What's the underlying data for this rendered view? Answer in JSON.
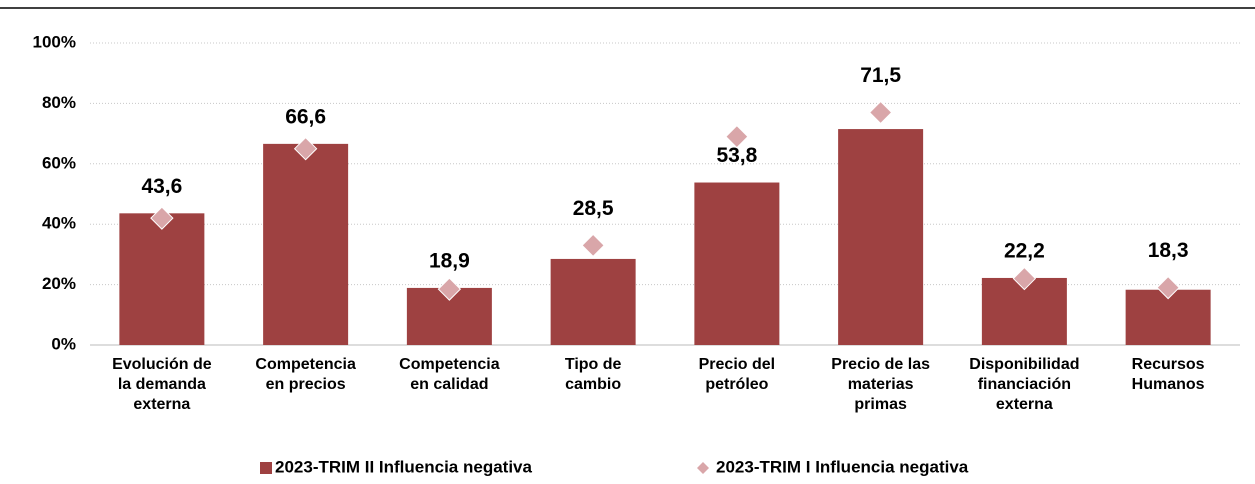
{
  "chart_data": {
    "type": "bar",
    "categories": [
      [
        "Evolución de",
        "la demanda",
        "externa"
      ],
      [
        "Competencia",
        "en precios"
      ],
      [
        "Competencia",
        "en calidad"
      ],
      [
        "Tipo de",
        "cambio"
      ],
      [
        "Precio del",
        "petróleo"
      ],
      [
        "Precio de las",
        "materias",
        "primas"
      ],
      [
        "Disponibilidad",
        "financiación",
        "externa"
      ],
      [
        "Recursos",
        "Humanos"
      ]
    ],
    "series": [
      {
        "name": "2023-TRIM II Influencia negativa",
        "color": "#9e4141",
        "marker": "bar",
        "values": [
          43.6,
          66.6,
          18.9,
          28.5,
          53.8,
          71.5,
          22.2,
          18.3
        ],
        "value_labels": [
          "43,6",
          "66,6",
          "18,9",
          "28,5",
          "53,8",
          "71,5",
          "22,2",
          "18,3"
        ]
      },
      {
        "name": "2023-TRIM I Influencia negativa",
        "color": "#d9a6a9",
        "marker": "diamond",
        "values": [
          42,
          65,
          18.5,
          33,
          69,
          77,
          22,
          19
        ]
      }
    ],
    "ylim": [
      0,
      100
    ],
    "yticks": [
      {
        "value": 0,
        "label": "0%"
      },
      {
        "value": 20,
        "label": "20%"
      },
      {
        "value": 40,
        "label": "40%"
      },
      {
        "value": 60,
        "label": "60%"
      },
      {
        "value": 80,
        "label": "80%"
      },
      {
        "value": 100,
        "label": "100%"
      }
    ],
    "grid": true
  }
}
